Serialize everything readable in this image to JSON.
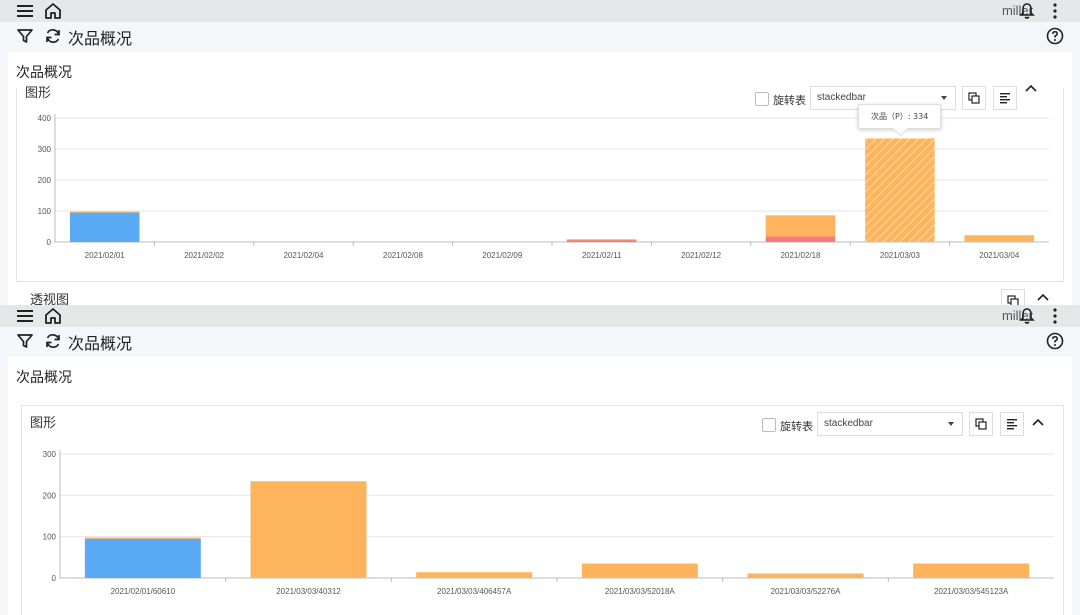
{
  "app": {
    "user": "miller",
    "page_title": "次品概况"
  },
  "icons": {
    "menu": "menu-icon",
    "home": "home-icon",
    "bell": "bell-icon",
    "more": "more-vertical-icon",
    "filter": "filter-icon",
    "refresh": "refresh-icon",
    "help": "help-icon"
  },
  "card": {
    "title": "次品概况"
  },
  "panel": {
    "title": "图形",
    "pivot_label": "旋转表",
    "chart_type_value": "stackedbar"
  },
  "lower_panel": {
    "title": "透视图"
  },
  "tooltip": {
    "text": "次品（P）: 334"
  },
  "colors": {
    "blue": "#5aaaf5",
    "orange": "#fdb45c",
    "red": "#f77b7b",
    "grid": "#e6e6e6",
    "axis": "#bbbbbb"
  },
  "chart_data": [
    {
      "type": "bar",
      "stacked": true,
      "categories": [
        "2021/02/01",
        "2021/02/02",
        "2021/02/04",
        "2021/02/08",
        "2021/02/09",
        "2021/02/11",
        "2021/02/12",
        "2021/02/18",
        "2021/03/03",
        "2021/03/04"
      ],
      "series": [
        {
          "color": "#5aaaf5",
          "values": [
            95,
            0,
            0,
            0,
            0,
            0,
            0,
            0,
            0,
            0
          ]
        },
        {
          "color": "#f77b7b",
          "values": [
            0,
            0,
            0,
            0,
            0,
            7,
            0,
            18,
            0,
            0
          ]
        },
        {
          "color": "#fdb45c",
          "values": [
            3,
            0,
            0,
            0,
            0,
            2,
            0,
            68,
            334,
            22
          ]
        }
      ],
      "ylim": [
        0,
        400
      ],
      "yticks": [
        0,
        100,
        200,
        300,
        400
      ],
      "grid": true
    },
    {
      "type": "bar",
      "stacked": true,
      "categories": [
        "2021/02/01/60610",
        "2021/03/03/40312",
        "2021/03/03/406457A",
        "2021/03/03/52018A",
        "2021/03/03/52276A",
        "2021/03/03/545123A"
      ],
      "series": [
        {
          "color": "#5aaaf5",
          "values": [
            95,
            0,
            0,
            0,
            0,
            0
          ]
        },
        {
          "color": "#fdb45c",
          "values": [
            3,
            234,
            14,
            35,
            11,
            35
          ]
        }
      ],
      "ylim": [
        0,
        300
      ],
      "yticks": [
        0,
        100,
        200,
        300
      ],
      "grid": true
    }
  ]
}
